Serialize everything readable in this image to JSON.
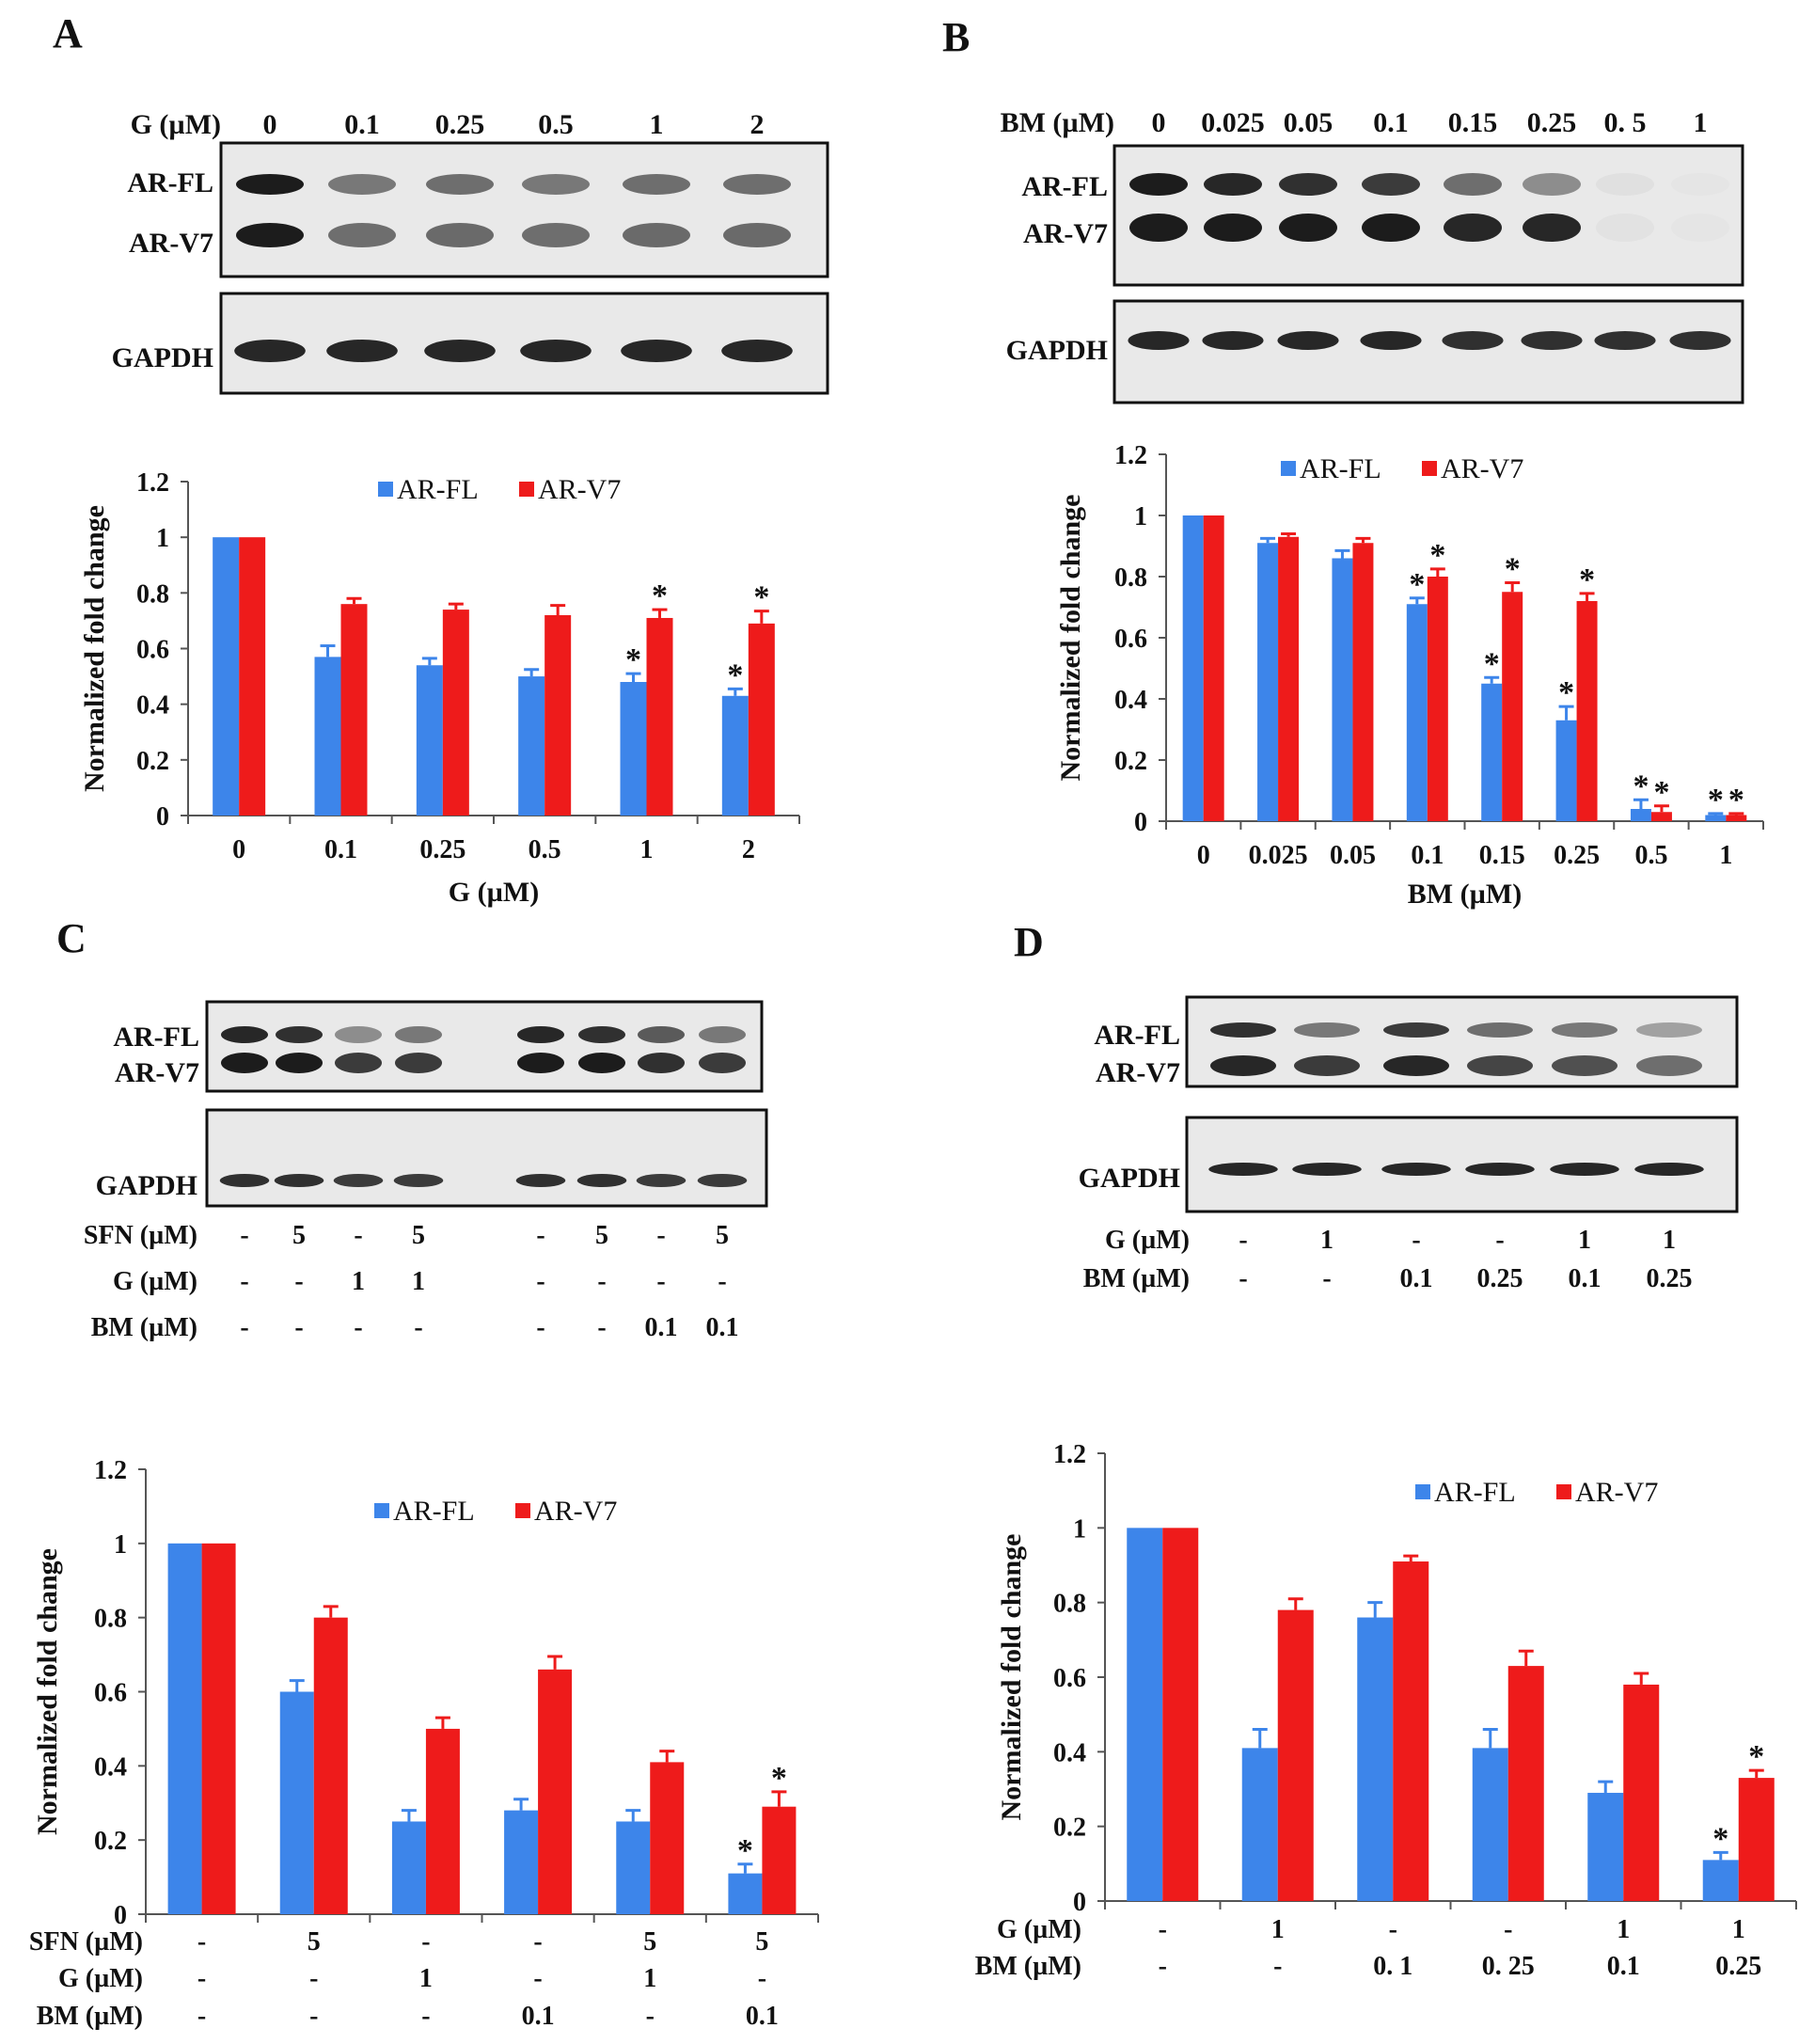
{
  "colors": {
    "ar_fl": "#3D85EA",
    "ar_v7": "#EE1B1B",
    "blot_bg": "#E9E9E9",
    "band": "#1c1c1c"
  },
  "panels": [
    {
      "id": "A",
      "label": "A",
      "blot": {
        "dose_label": "G (µM)",
        "lanes": [
          "0",
          "0.1",
          "0.25",
          "0.5",
          "1",
          "2"
        ],
        "band_labels": [
          "AR-FL",
          "AR-V7"
        ],
        "loading_label": "GAPDH",
        "row_labels": []
      }
    },
    {
      "id": "B",
      "label": "B",
      "blot": {
        "dose_label": "BM (µM)",
        "lanes": [
          "0",
          "0.025",
          "0.05",
          "0.1",
          "0.15",
          "0.25",
          "0. 5",
          "1"
        ],
        "band_labels": [
          "AR-FL",
          "AR-V7"
        ],
        "loading_label": "GAPDH",
        "row_labels": []
      }
    },
    {
      "id": "C",
      "label": "C",
      "blot": {
        "dose_label": "",
        "lanes": [],
        "band_labels": [
          "AR-FL",
          "AR-V7"
        ],
        "loading_label": "GAPDH",
        "row_labels": [
          {
            "label": "SFN (µM)",
            "values": [
              "-",
              "5",
              "-",
              "5",
              "-",
              "5",
              "-",
              "5"
            ]
          },
          {
            "label": "G (µM)",
            "values": [
              "-",
              "-",
              "1",
              "1",
              "-",
              "-",
              "-",
              "-"
            ]
          },
          {
            "label": "BM (µM)",
            "values": [
              "-",
              "-",
              "-",
              "-",
              "-",
              "-",
              "0.1",
              "0.1"
            ]
          }
        ]
      }
    },
    {
      "id": "D",
      "label": "D",
      "blot": {
        "dose_label": "",
        "lanes": [],
        "band_labels": [
          "AR-FL",
          "AR-V7"
        ],
        "loading_label": "GAPDH",
        "row_labels": [
          {
            "label": "G (µM)",
            "values": [
              "-",
              "1",
              "-",
              "-",
              "1",
              "1"
            ]
          },
          {
            "label": "BM (µM)",
            "values": [
              "-",
              "-",
              "0.1",
              "0.25",
              "0.1",
              "0.25"
            ]
          }
        ]
      }
    }
  ],
  "chart_data": [
    {
      "id": "A",
      "type": "bar",
      "title": "",
      "xlabel": "G (µM)",
      "ylabel": "Normalized fold change",
      "ylim": [
        0,
        1.2
      ],
      "yticks": [
        "0",
        "0.2",
        "0.4",
        "0.6",
        "0.8",
        "1",
        "1.2"
      ],
      "legend": "top-center",
      "categories": [
        "0",
        "0.1",
        "0.25",
        "0.5",
        "1",
        "2"
      ],
      "series": [
        {
          "name": "AR-FL",
          "values": [
            1.0,
            0.57,
            0.54,
            0.5,
            0.48,
            0.43
          ],
          "errors": [
            0,
            0.04,
            0.025,
            0.025,
            0.03,
            0.025
          ],
          "sig": [
            false,
            false,
            false,
            false,
            true,
            true
          ]
        },
        {
          "name": "AR-V7",
          "values": [
            1.0,
            0.76,
            0.74,
            0.72,
            0.71,
            0.69
          ],
          "errors": [
            0,
            0.02,
            0.02,
            0.035,
            0.03,
            0.045
          ],
          "sig": [
            false,
            false,
            false,
            false,
            true,
            true
          ]
        }
      ]
    },
    {
      "id": "B",
      "type": "bar",
      "title": "",
      "xlabel": "BM (µM)",
      "ylabel": "Normalized fold change",
      "ylim": [
        0,
        1.2
      ],
      "yticks": [
        "0",
        "0.2",
        "0.4",
        "0.6",
        "0.8",
        "1",
        "1.2"
      ],
      "legend": "top-center",
      "categories": [
        "0",
        "0.025",
        "0.05",
        "0.1",
        "0.15",
        "0.25",
        "0.5",
        "1"
      ],
      "series": [
        {
          "name": "AR-FL",
          "values": [
            1.0,
            0.91,
            0.86,
            0.71,
            0.45,
            0.33,
            0.04,
            0.02
          ],
          "errors": [
            0,
            0.015,
            0.025,
            0.02,
            0.02,
            0.045,
            0.03,
            0.005
          ],
          "sig": [
            false,
            false,
            false,
            true,
            true,
            true,
            true,
            true
          ]
        },
        {
          "name": "AR-V7",
          "values": [
            1.0,
            0.93,
            0.91,
            0.8,
            0.75,
            0.72,
            0.03,
            0.02
          ],
          "errors": [
            0,
            0.01,
            0.015,
            0.025,
            0.03,
            0.025,
            0.02,
            0.005
          ],
          "sig": [
            false,
            false,
            false,
            true,
            true,
            true,
            true,
            true
          ]
        }
      ]
    },
    {
      "id": "C",
      "type": "bar",
      "title": "",
      "xlabel": "",
      "ylabel": "Normalized fold change",
      "ylim": [
        0,
        1.2
      ],
      "yticks": [
        "0",
        "0.2",
        "0.4",
        "0.6",
        "0.8",
        "1",
        "1.2"
      ],
      "legend": "top-center",
      "category_rows": [
        {
          "label": "SFN (µM)",
          "values": [
            "-",
            "5",
            "-",
            "-",
            "5",
            "5"
          ]
        },
        {
          "label": "G (µM)",
          "values": [
            "-",
            "-",
            "1",
            "-",
            "1",
            "-"
          ]
        },
        {
          "label": "BM (µM)",
          "values": [
            "-",
            "-",
            "-",
            "0.1",
            "-",
            "0.1"
          ]
        }
      ],
      "series": [
        {
          "name": "AR-FL",
          "values": [
            1.0,
            0.6,
            0.25,
            0.28,
            0.25,
            0.11
          ],
          "errors": [
            0,
            0.03,
            0.03,
            0.03,
            0.03,
            0.025
          ],
          "sig": [
            false,
            false,
            false,
            false,
            false,
            true
          ]
        },
        {
          "name": "AR-V7",
          "values": [
            1.0,
            0.8,
            0.5,
            0.66,
            0.41,
            0.29
          ],
          "errors": [
            0,
            0.03,
            0.03,
            0.035,
            0.03,
            0.04
          ],
          "sig": [
            false,
            false,
            false,
            false,
            false,
            true
          ]
        }
      ]
    },
    {
      "id": "D",
      "type": "bar",
      "title": "",
      "xlabel": "",
      "ylabel": "Normalized fold change",
      "ylim": [
        0,
        1.2
      ],
      "yticks": [
        "0",
        "0.2",
        "0.4",
        "0.6",
        "0.8",
        "1",
        "1.2"
      ],
      "legend": "top-right",
      "category_rows": [
        {
          "label": "G (µM)",
          "values": [
            "-",
            "1",
            "-",
            "-",
            "1",
            "1"
          ]
        },
        {
          "label": "BM (µM)",
          "values": [
            "-",
            "-",
            "0. 1",
            "0. 25",
            "0.1",
            "0.25"
          ]
        }
      ],
      "series": [
        {
          "name": "AR-FL",
          "values": [
            1.0,
            0.41,
            0.76,
            0.41,
            0.29,
            0.11
          ],
          "errors": [
            0,
            0.05,
            0.04,
            0.05,
            0.03,
            0.02
          ],
          "sig": [
            false,
            false,
            false,
            false,
            false,
            true
          ]
        },
        {
          "name": "AR-V7",
          "values": [
            1.0,
            0.78,
            0.91,
            0.63,
            0.58,
            0.33
          ],
          "errors": [
            0,
            0.03,
            0.015,
            0.04,
            0.03,
            0.02
          ],
          "sig": [
            false,
            false,
            false,
            false,
            false,
            true
          ]
        }
      ]
    }
  ]
}
